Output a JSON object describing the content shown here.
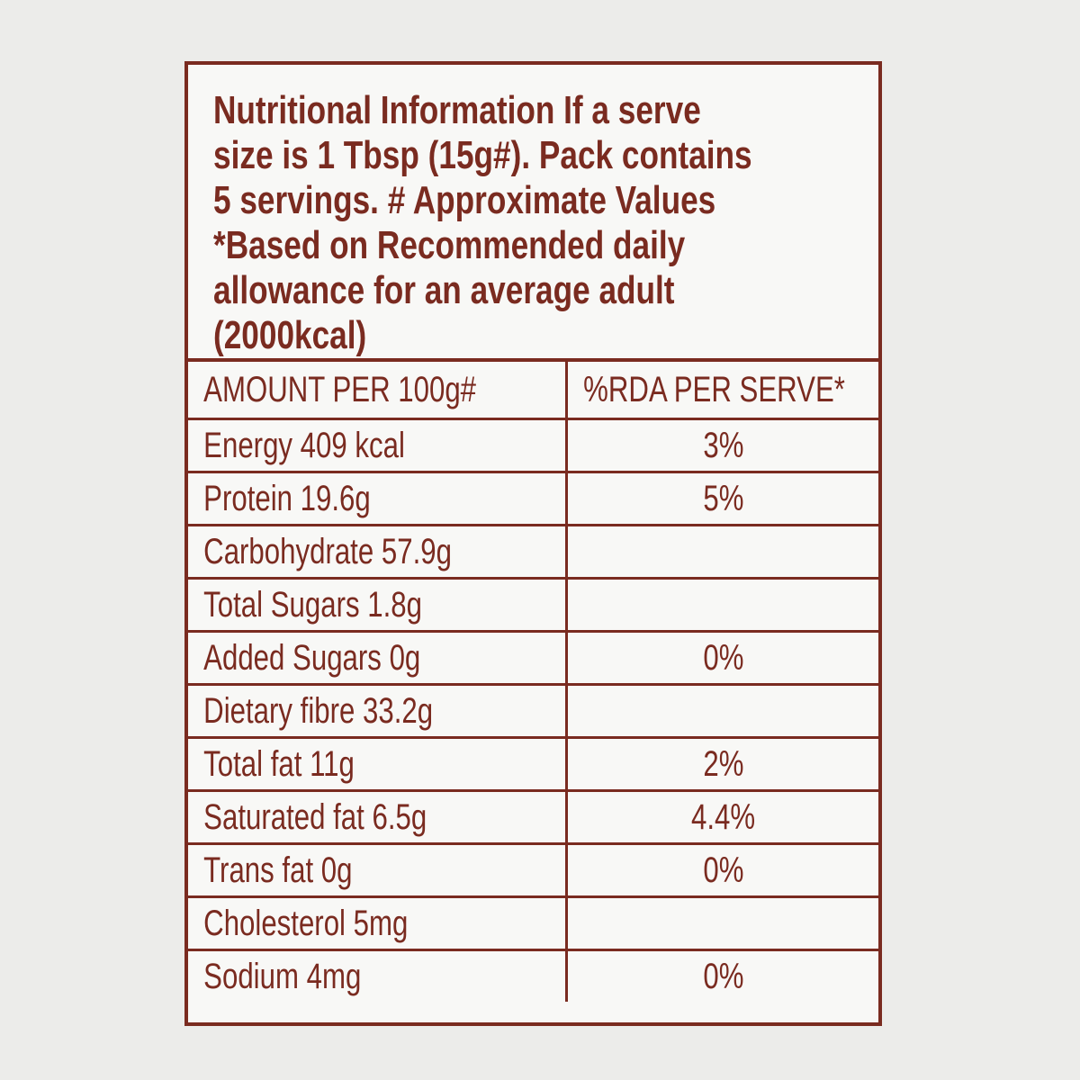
{
  "header": {
    "lines": [
      "Nutritional Information If a serve",
      "size is 1 Tbsp (15g#). Pack contains",
      "5 servings. # Approximate Values",
      "*Based on Recommended daily",
      "allowance for an average adult",
      "(2000kcal)"
    ]
  },
  "table": {
    "columns": [
      "AMOUNT PER 100g#",
      "%RDA PER SERVE*"
    ],
    "rows": [
      [
        "Energy 409 kcal",
        "3%"
      ],
      [
        "Protein 19.6g",
        "5%"
      ],
      [
        "Carbohydrate 57.9g",
        null
      ],
      [
        "Total Sugars 1.8g",
        null
      ],
      [
        "Added Sugars 0g",
        "0%"
      ],
      [
        "Dietary fibre 33.2g",
        null
      ],
      [
        "Total fat 11g",
        "2%"
      ],
      [
        "Saturated fat 6.5g",
        "4.4%"
      ],
      [
        "Trans fat 0g",
        "0%"
      ],
      [
        "Cholesterol 5mg",
        null
      ],
      [
        "Sodium 4mg",
        "0%"
      ]
    ]
  }
}
